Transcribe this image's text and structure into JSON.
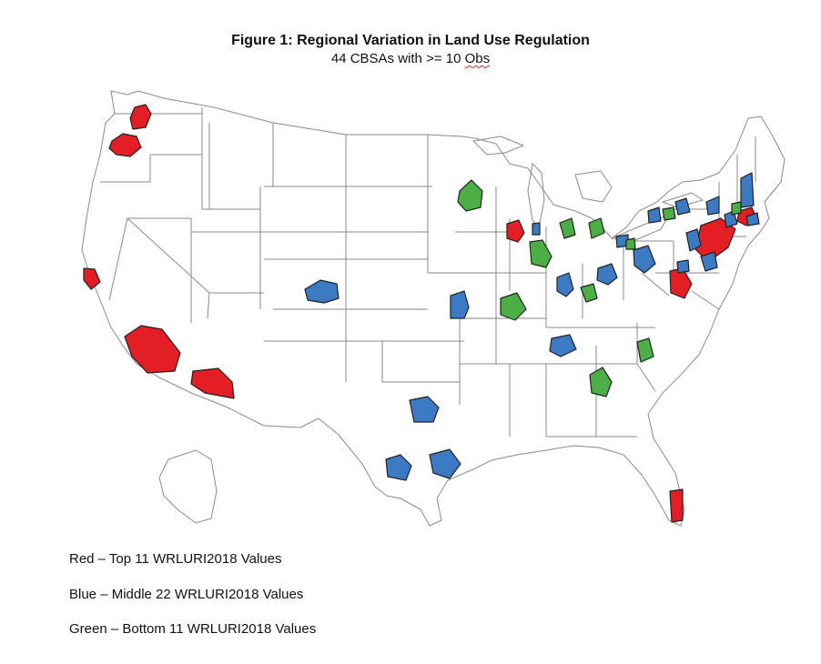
{
  "figure": {
    "title": "Figure 1: Regional Variation in Land Use Regulation",
    "subtitle_prefix": "44 CBSAs with >= 10 ",
    "subtitle_flagged": "Obs"
  },
  "legend": {
    "red": "Red – Top 11 WRLURI2018 Values",
    "blue": "Blue – Middle 22 WRLURI2018 Values",
    "green": "Green – Bottom 11 WRLURI2018 Values"
  },
  "colors": {
    "red": "#e31e24",
    "blue": "#3c7ac4",
    "green": "#4caf45",
    "state_border": "#8a8a8a",
    "outline": "#222222"
  }
}
